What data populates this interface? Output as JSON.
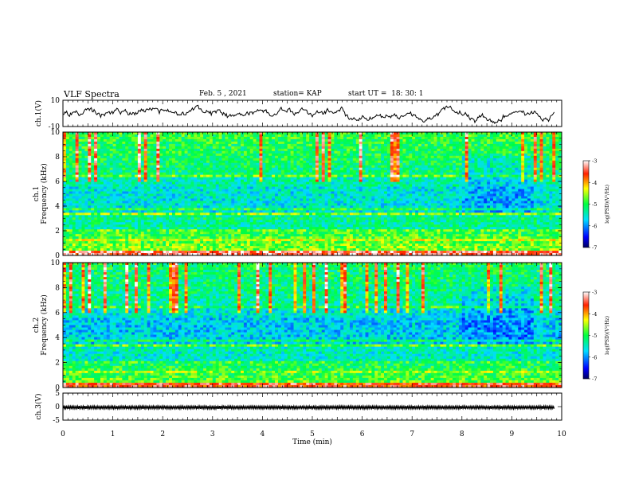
{
  "header": {
    "title": "VLF Spectra",
    "date": "Feb. 5 , 2021",
    "station": "station= KAP",
    "start_ut": "start UT =  18: 30: 1"
  },
  "chart_data": [
    {
      "type": "line",
      "panel": "ch1_waveform",
      "ylabel": "ch.1(V)",
      "ylim": [
        -10,
        10
      ],
      "yticks": [
        10,
        -10
      ],
      "xlim": [
        0,
        9.85
      ]
    },
    {
      "type": "heatmap",
      "panel": "ch1_spectrogram",
      "ylabel_lines": [
        "ch.1",
        "Frequency  (kHz)"
      ],
      "ylim": [
        0,
        10
      ],
      "yticks": [
        0,
        2,
        4,
        6,
        8,
        10
      ],
      "xlim": [
        0,
        9.85
      ],
      "colorbar": {
        "label": "log(PSD)(V²/Hz)",
        "ticks": [
          -3,
          -4,
          -5,
          -6,
          -7
        ],
        "range": [
          -7,
          -3
        ]
      }
    },
    {
      "type": "heatmap",
      "panel": "ch2_spectrogram",
      "ylabel_lines": [
        "ch.2",
        "Frequency  (kHz)"
      ],
      "ylim": [
        0,
        10
      ],
      "yticks": [
        0,
        2,
        4,
        6,
        8,
        10
      ],
      "xlim": [
        0,
        9.85
      ],
      "colorbar": {
        "label": "log(PSD)(V²/Hz)",
        "ticks": [
          -3,
          -4,
          -5,
          -6,
          -7
        ],
        "range": [
          -7,
          -3
        ]
      }
    },
    {
      "type": "line",
      "panel": "ch3_waveform",
      "ylabel": "ch.3(V)",
      "ylim": [
        -5,
        5
      ],
      "yticks": [
        5,
        0,
        -5
      ],
      "xlim": [
        0,
        9.85
      ]
    }
  ],
  "xaxis": {
    "label": "Time  (min)",
    "ticks": [
      0,
      1,
      2,
      3,
      4,
      5,
      6,
      7,
      8,
      9,
      10
    ],
    "range": [
      0,
      10
    ]
  }
}
